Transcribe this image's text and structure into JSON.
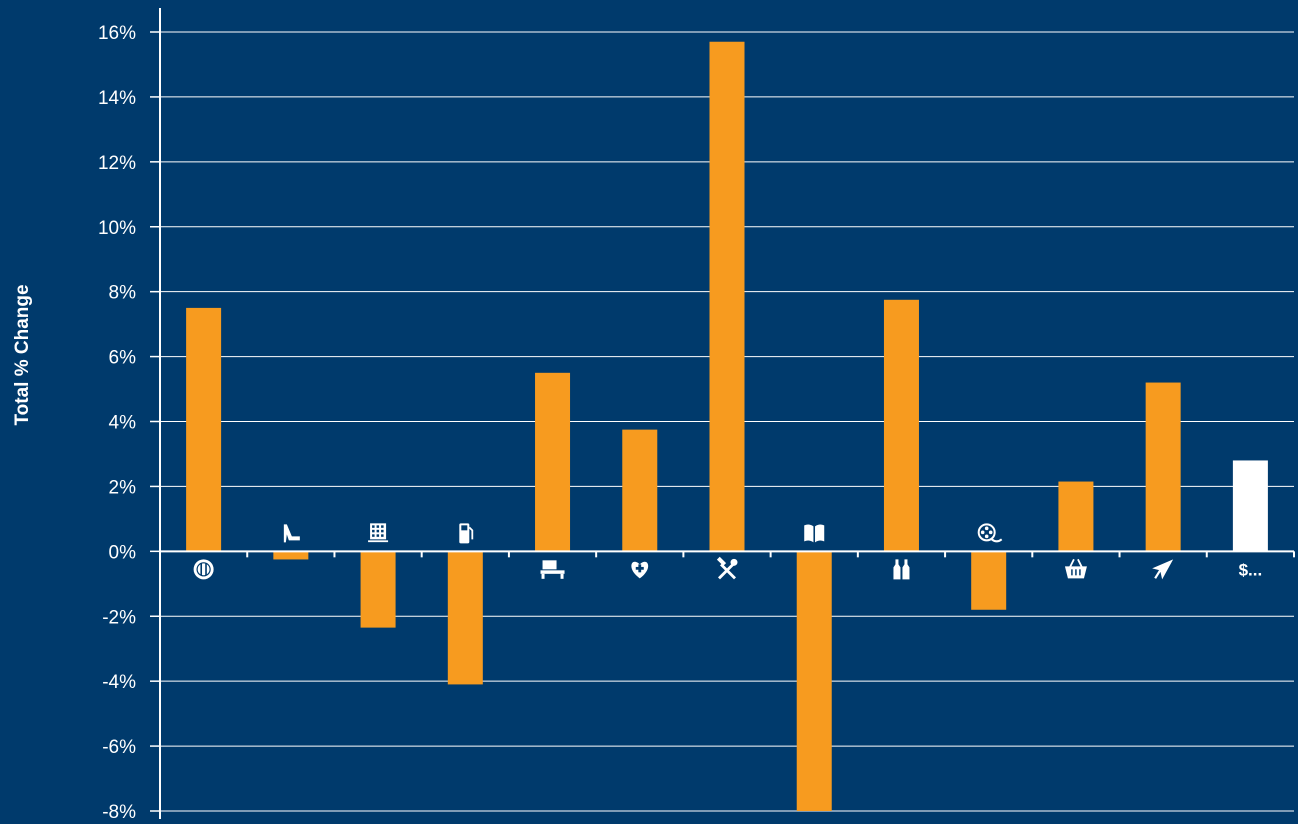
{
  "colors": {
    "background": "#003a6c",
    "bar": "#f79b1f",
    "highlight_bar": "#ffffff",
    "grid": "#ffffff",
    "text": "#ffffff"
  },
  "chart_data": {
    "type": "bar",
    "title": "",
    "xlabel": "",
    "ylabel": "Total % Change",
    "ylim": [
      -8,
      16
    ],
    "yticks": [
      -8,
      -6,
      -4,
      -2,
      0,
      2,
      4,
      6,
      8,
      10,
      12,
      14,
      16
    ],
    "ytick_labels": [
      "-8%",
      "-6%",
      "-4%",
      "-2%",
      "0%",
      "2%",
      "4%",
      "6%",
      "8%",
      "10%",
      "12%",
      "14%",
      "16%"
    ],
    "grid": true,
    "legend": "none",
    "categories": [
      {
        "icon": "dining-icon",
        "label": "",
        "value": 7.5
      },
      {
        "icon": "high-heel-icon",
        "label": "",
        "value": -0.25
      },
      {
        "icon": "department-store-icon",
        "label": "",
        "value": -2.35
      },
      {
        "icon": "fuel-pump-icon",
        "label": "",
        "value": -4.1
      },
      {
        "icon": "furniture-icon",
        "label": "",
        "value": 5.5
      },
      {
        "icon": "health-icon",
        "label": "",
        "value": 3.75
      },
      {
        "icon": "tools-icon",
        "label": "",
        "value": 15.7
      },
      {
        "icon": "book-icon",
        "label": "",
        "value": -8.0
      },
      {
        "icon": "wine-bottles-icon",
        "label": "",
        "value": 7.75
      },
      {
        "icon": "film-reel-icon",
        "label": "",
        "value": -1.8
      },
      {
        "icon": "grocery-basket-icon",
        "label": "",
        "value": 2.15
      },
      {
        "icon": "airplane-icon",
        "label": "",
        "value": 5.2
      },
      {
        "icon": "",
        "label": "$...",
        "value": 2.8,
        "highlight": true
      }
    ]
  }
}
